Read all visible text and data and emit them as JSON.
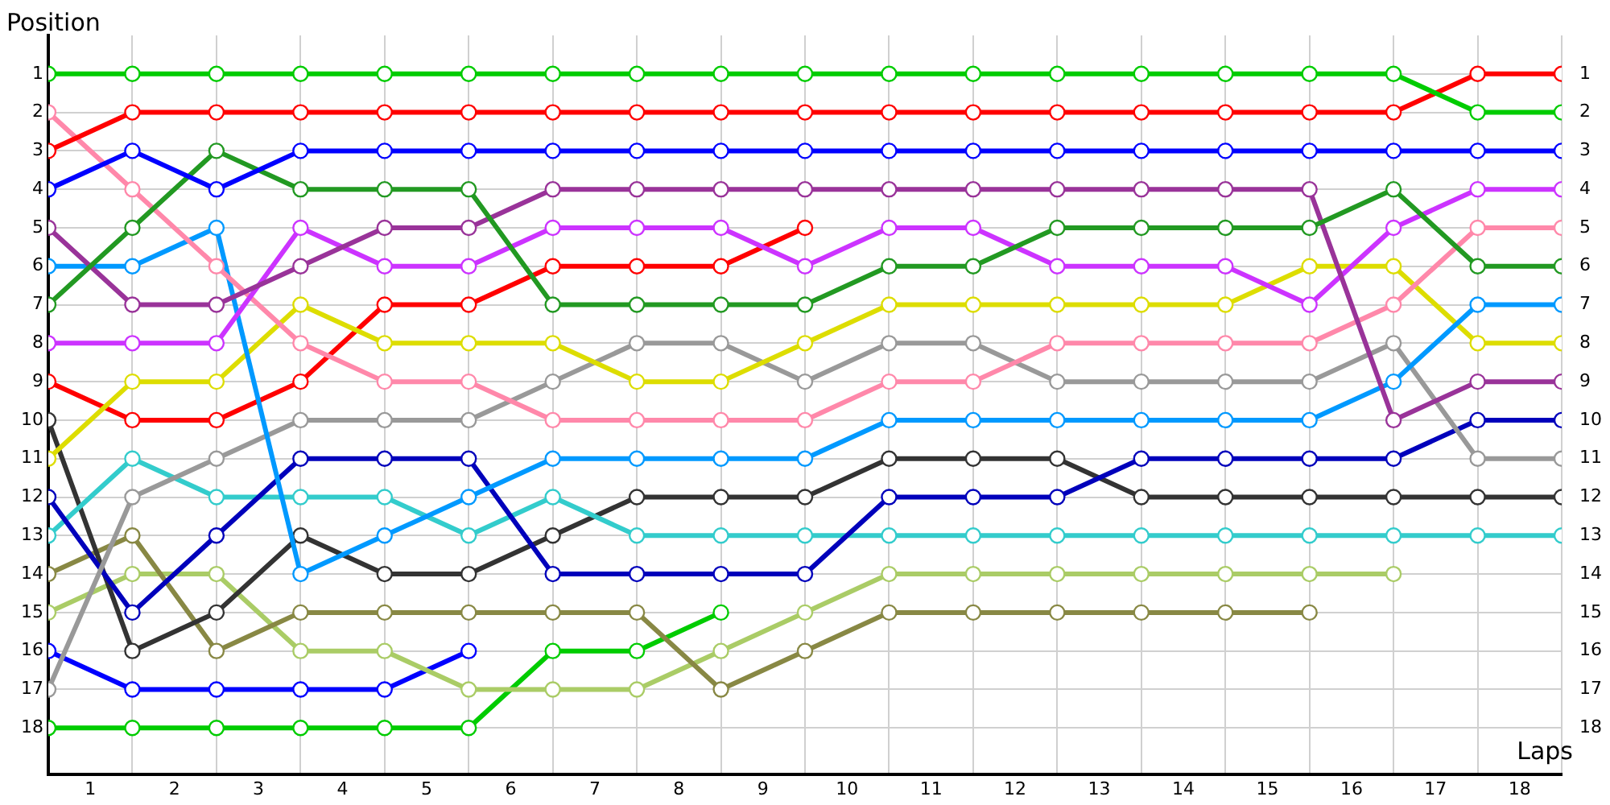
{
  "chart_data": {
    "type": "line",
    "xlabel": "Laps",
    "ylabel": "Position",
    "x": [
      0,
      1,
      2,
      3,
      4,
      5,
      6,
      7,
      8,
      9,
      10,
      11,
      12,
      13,
      14,
      15,
      16,
      17,
      18
    ],
    "xlim": [
      0,
      18
    ],
    "xticks": [
      {
        "value": 0,
        "label": null
      },
      {
        "value": 0.5,
        "label": "1"
      },
      {
        "value": 1,
        "label": null
      },
      {
        "value": 1.5,
        "label": "2"
      },
      {
        "value": 2,
        "label": null
      },
      {
        "value": 2.5,
        "label": "3"
      },
      {
        "value": 3,
        "label": null
      },
      {
        "value": 3.5,
        "label": "4"
      },
      {
        "value": 4,
        "label": null
      },
      {
        "value": 4.5,
        "label": "5"
      },
      {
        "value": 5,
        "label": null
      },
      {
        "value": 5.5,
        "label": "6"
      },
      {
        "value": 6,
        "label": null
      },
      {
        "value": 6.5,
        "label": "7"
      },
      {
        "value": 7,
        "label": null
      },
      {
        "value": 7.5,
        "label": "8"
      },
      {
        "value": 8,
        "label": null
      },
      {
        "value": 8.5,
        "label": "9"
      },
      {
        "value": 9,
        "label": null
      },
      {
        "value": 9.5,
        "label": "10"
      },
      {
        "value": 10,
        "label": null
      },
      {
        "value": 10.5,
        "label": "11"
      },
      {
        "value": 11,
        "label": null
      },
      {
        "value": 11.5,
        "label": "12"
      },
      {
        "value": 12,
        "label": null
      },
      {
        "value": 12.5,
        "label": "13"
      },
      {
        "value": 13,
        "label": null
      },
      {
        "value": 13.5,
        "label": "14"
      },
      {
        "value": 14,
        "label": null
      },
      {
        "value": 14.5,
        "label": "15"
      },
      {
        "value": 15,
        "label": null
      },
      {
        "value": 15.5,
        "label": "16"
      },
      {
        "value": 16,
        "label": null
      },
      {
        "value": 16.5,
        "label": "17"
      },
      {
        "value": 17,
        "label": null
      },
      {
        "value": 17.5,
        "label": "18"
      },
      {
        "value": 18,
        "label": null
      }
    ],
    "ylim": [
      19.2,
      0
    ],
    "yticks": [
      1,
      2,
      3,
      4,
      5,
      6,
      7,
      8,
      9,
      10,
      11,
      12,
      13,
      14,
      15,
      16,
      17,
      18
    ],
    "y2lim": [
      19.2,
      0
    ],
    "y2ticks": [
      1,
      2,
      3,
      4,
      5,
      6,
      7,
      8,
      9,
      10,
      11,
      12,
      13,
      14,
      15,
      16,
      17,
      18
    ],
    "grid": true,
    "legend": false,
    "marker": "circle",
    "line_style": "solid",
    "series": [
      {
        "color": "#00cc00",
        "values": [
          1,
          1,
          1,
          1,
          1,
          1,
          1,
          1,
          1,
          1,
          1,
          1,
          1,
          1,
          1,
          1,
          1,
          2,
          2
        ]
      },
      {
        "color": "#ff0000",
        "values": [
          3,
          2,
          2,
          2,
          2,
          2,
          2,
          2,
          2,
          2,
          2,
          2,
          2,
          2,
          2,
          2,
          2,
          1,
          1
        ]
      },
      {
        "color": "#0000ff",
        "values": [
          4,
          3,
          4,
          3,
          3,
          3,
          3,
          3,
          3,
          3,
          3,
          3,
          3,
          3,
          3,
          3,
          3,
          3,
          3
        ]
      },
      {
        "color": "#229922",
        "values": [
          7,
          5,
          3,
          4,
          4,
          4,
          7,
          7,
          7,
          7,
          6,
          6,
          5,
          5,
          5,
          5,
          4,
          6,
          6
        ]
      },
      {
        "color": "#993399",
        "values": [
          5,
          7,
          7,
          6,
          5,
          5,
          4,
          4,
          4,
          4,
          4,
          4,
          4,
          4,
          4,
          4,
          10,
          9,
          9
        ]
      },
      {
        "color": "#cc33ff",
        "values": [
          8,
          8,
          8,
          5,
          6,
          6,
          5,
          5,
          5,
          6,
          5,
          5,
          6,
          6,
          6,
          7,
          5,
          4,
          4
        ]
      },
      {
        "color": "#ff88aa",
        "values": [
          2,
          4,
          6,
          8,
          9,
          9,
          10,
          10,
          10,
          10,
          9,
          9,
          8,
          8,
          8,
          8,
          7,
          5,
          5
        ]
      },
      {
        "color": "#0099ff",
        "values": [
          6,
          6,
          5,
          14,
          13,
          12,
          11,
          11,
          11,
          11,
          10,
          10,
          10,
          10,
          10,
          10,
          9,
          7,
          7
        ]
      },
      {
        "color": "#dddd00",
        "values": [
          11,
          9,
          9,
          7,
          8,
          8,
          8,
          9,
          9,
          8,
          7,
          7,
          7,
          7,
          7,
          6,
          6,
          8,
          8
        ]
      },
      {
        "color": "#ff0000",
        "values": [
          9,
          10,
          10,
          9,
          7,
          7,
          6,
          6,
          6,
          5,
          null,
          null,
          null,
          null,
          null,
          null,
          null,
          null,
          null
        ]
      },
      {
        "color": "#999999",
        "values": [
          17,
          12,
          11,
          10,
          10,
          10,
          9,
          8,
          8,
          9,
          8,
          8,
          9,
          9,
          9,
          9,
          8,
          11,
          11
        ]
      },
      {
        "color": "#0000bb",
        "values": [
          12,
          15,
          13,
          11,
          11,
          11,
          14,
          14,
          14,
          14,
          12,
          12,
          12,
          11,
          11,
          11,
          11,
          10,
          10
        ]
      },
      {
        "color": "#33cccc",
        "values": [
          13,
          11,
          12,
          12,
          12,
          13,
          12,
          13,
          13,
          13,
          13,
          13,
          13,
          13,
          13,
          13,
          13,
          13,
          13
        ]
      },
      {
        "color": "#333333",
        "values": [
          10,
          16,
          15,
          13,
          14,
          14,
          13,
          12,
          12,
          12,
          11,
          11,
          11,
          12,
          12,
          12,
          12,
          12,
          12
        ]
      },
      {
        "color": "#888844",
        "values": [
          14,
          13,
          16,
          15,
          15,
          15,
          15,
          15,
          17,
          16,
          15,
          15,
          15,
          15,
          15,
          15,
          null,
          null,
          null
        ]
      },
      {
        "color": "#aacc66",
        "values": [
          15,
          14,
          14,
          16,
          16,
          17,
          17,
          17,
          16,
          15,
          14,
          14,
          14,
          14,
          14,
          14,
          14,
          null,
          null
        ]
      },
      {
        "color": "#0000ff",
        "values": [
          16,
          17,
          17,
          17,
          17,
          16,
          null,
          null,
          null,
          null,
          null,
          null,
          null,
          null,
          null,
          null,
          null,
          null,
          null
        ]
      },
      {
        "color": "#00cc00",
        "values": [
          18,
          18,
          18,
          18,
          18,
          18,
          16,
          16,
          15,
          null,
          null,
          null,
          null,
          null,
          null,
          null,
          null,
          null,
          null
        ]
      }
    ]
  }
}
